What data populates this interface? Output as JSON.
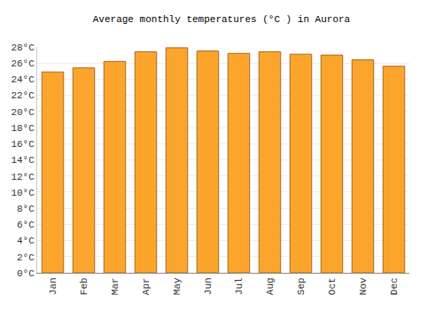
{
  "chart_data": {
    "type": "bar",
    "title": "Average monthly temperatures (°C ) in Aurora",
    "categories": [
      "Jan",
      "Feb",
      "Mar",
      "Apr",
      "May",
      "Jun",
      "Jul",
      "Aug",
      "Sep",
      "Oct",
      "Nov",
      "Dec"
    ],
    "values": [
      24.9,
      25.4,
      26.2,
      27.4,
      27.9,
      27.5,
      27.2,
      27.4,
      27.1,
      27.0,
      26.4,
      25.6
    ],
    "color": "#fba52d",
    "ylim": [
      0,
      28
    ],
    "yticks": [
      {
        "value": 0,
        "label": "0°C"
      },
      {
        "value": 2,
        "label": "2°C"
      },
      {
        "value": 4,
        "label": "4°C"
      },
      {
        "value": 6,
        "label": "6°C"
      },
      {
        "value": 8,
        "label": "8°C"
      },
      {
        "value": 10,
        "label": "10°C"
      },
      {
        "value": 12,
        "label": "12°C"
      },
      {
        "value": 14,
        "label": "14°C"
      },
      {
        "value": 16,
        "label": "16°C"
      },
      {
        "value": 18,
        "label": "18°C"
      },
      {
        "value": 20,
        "label": "20°C"
      },
      {
        "value": 22,
        "label": "22°C"
      },
      {
        "value": 24,
        "label": "24°C"
      },
      {
        "value": 26,
        "label": "26°C"
      },
      {
        "value": 28,
        "label": "28°C"
      }
    ],
    "grid": true
  }
}
